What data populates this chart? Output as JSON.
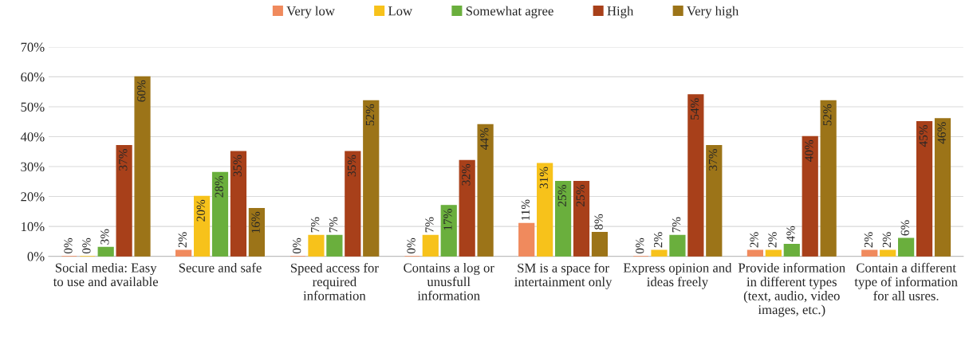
{
  "chart_data": {
    "type": "bar",
    "categories": [
      "Social media: Easy to use and available",
      "Secure and safe",
      "Speed access for required information",
      "Contains a log or unusfull information",
      "SM is a space for intertainment only",
      "Express opinion and ideas freely",
      "Provide information in different types (text, audio, video images, etc.)",
      "Contain a different type of information for all usres."
    ],
    "series": [
      {
        "name": "Very low",
        "color": "#f08a5d",
        "values": [
          0,
          2,
          0,
          0,
          11,
          0,
          2,
          2
        ],
        "value_labels": [
          "0%",
          "2%",
          "0%",
          "0%",
          "11%",
          "0%",
          "2%",
          "2%"
        ]
      },
      {
        "name": "Low",
        "color": "#f7c21b",
        "values": [
          0,
          20,
          7,
          7,
          31,
          2,
          2,
          2
        ],
        "value_labels": [
          "0%",
          "20%",
          "7%",
          "7%",
          "31%",
          "2%",
          "2%",
          "2%"
        ]
      },
      {
        "name": "Somewhat agree",
        "color": "#6aaf3d",
        "values": [
          3,
          28,
          7,
          17,
          25,
          7,
          4,
          6
        ],
        "value_labels": [
          "3%",
          "28%",
          "7%",
          "17%",
          "25%",
          "7%",
          "4%",
          "6%"
        ]
      },
      {
        "name": "High",
        "color": "#a8401a",
        "values": [
          37,
          35,
          35,
          32,
          25,
          54,
          40,
          45
        ],
        "value_labels": [
          "37%",
          "35%",
          "35%",
          "32%",
          "25%",
          "54%",
          "40%",
          "45%"
        ]
      },
      {
        "name": "Very high",
        "color": "#9c7418",
        "values": [
          60,
          16,
          52,
          44,
          8,
          37,
          52,
          46
        ],
        "value_labels": [
          "60%",
          "16%",
          "52%",
          "44%",
          "8%",
          "37%",
          "52%",
          "46%"
        ]
      }
    ],
    "ylim": [
      0,
      70
    ],
    "yticks": [
      {
        "value": 0,
        "label": "0%"
      },
      {
        "value": 10,
        "label": "10%"
      },
      {
        "value": 20,
        "label": "20%"
      },
      {
        "value": 30,
        "label": "30%"
      },
      {
        "value": 40,
        "label": "40%"
      },
      {
        "value": 50,
        "label": "50%"
      },
      {
        "value": 60,
        "label": "60%"
      },
      {
        "value": 70,
        "label": "70%"
      }
    ],
    "grid": "y",
    "legend": "top"
  }
}
